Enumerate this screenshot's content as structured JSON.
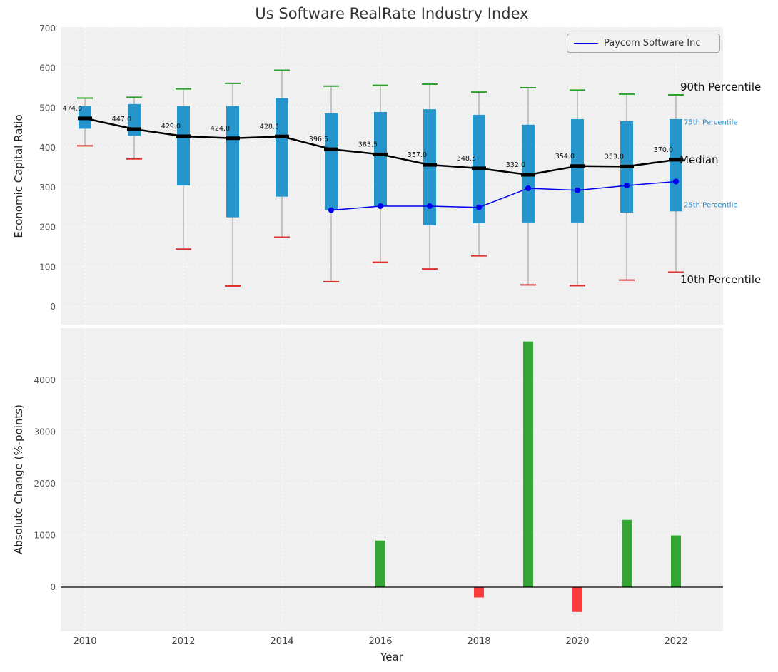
{
  "title": "Us Software RealRate Industry Index",
  "legend": {
    "series_label": "Paycom Software Inc"
  },
  "axis_labels": {
    "top_y": "Economic Capital Ratio",
    "bottom_y": "Absolute Change (%-points)",
    "x": "Year"
  },
  "annotations": {
    "p90": "90th Percentile",
    "p75": "75th Percentile",
    "median": "Median",
    "p25": "25th Percentile",
    "p10": "10th Percentile"
  },
  "colors": {
    "box": "#2595cc",
    "median_line": "#000000",
    "paycom_line": "#0000ee",
    "cap_high": "#2ca02c",
    "cap_low": "#e13030",
    "bar_positive": "#34a534",
    "bar_negative": "#fb3b3b",
    "whisker": "#999999",
    "plot_bg": "#f0f0f0",
    "grid": "#ffffff",
    "annotation_blue": "#1c87c9",
    "tick_label": "#555555"
  },
  "chart_data": [
    {
      "type": "boxplot_with_median_line",
      "title": "Us Software RealRate Industry Index",
      "ylabel": "Economic Capital Ratio",
      "ylim": [
        0,
        700
      ],
      "yticks": [
        0,
        100,
        200,
        300,
        400,
        500,
        600,
        700
      ],
      "xticks": [
        2010,
        2012,
        2014,
        2016,
        2018,
        2020,
        2022
      ],
      "years": [
        2010,
        2011,
        2012,
        2013,
        2014,
        2015,
        2016,
        2017,
        2018,
        2019,
        2020,
        2021,
        2022
      ],
      "p90": [
        525,
        527,
        548,
        562,
        595,
        555,
        557,
        560,
        540,
        551,
        545,
        535,
        533
      ],
      "p75": [
        505,
        510,
        505,
        505,
        525,
        487,
        490,
        497,
        483,
        458,
        472,
        467,
        472
      ],
      "median": [
        474,
        447,
        429,
        424,
        428.5,
        396.5,
        383.5,
        357,
        348.5,
        332,
        354,
        353,
        370
      ],
      "p25": [
        448,
        430,
        305,
        225,
        277,
        243,
        253,
        205,
        210,
        212,
        212,
        237,
        240
      ],
      "p10": [
        405,
        372,
        145,
        52,
        175,
        63,
        112,
        95,
        128,
        55,
        53,
        67,
        87
      ],
      "median_labels": [
        "474.0",
        "447.0",
        "429.0",
        "424.0",
        "428.5",
        "396.5",
        "383.5",
        "357.0",
        "348.5",
        "332.0",
        "354.0",
        "353.0",
        "370.0"
      ],
      "series": [
        {
          "name": "Paycom Software Inc",
          "x": [
            2015,
            2016,
            2017,
            2018,
            2019,
            2020,
            2021,
            2022
          ],
          "y": [
            243,
            253,
            253,
            250,
            298,
            293,
            305,
            315
          ]
        }
      ],
      "legend_position": "upper right",
      "grid": true
    },
    {
      "type": "bar",
      "ylabel": "Absolute Change (%-points)",
      "xlabel": "Year",
      "ylim": [
        -900,
        5000
      ],
      "yticks": [
        0,
        1000,
        2000,
        3000,
        4000
      ],
      "xticks": [
        2010,
        2012,
        2014,
        2016,
        2018,
        2020,
        2022
      ],
      "years": [
        2010,
        2011,
        2012,
        2013,
        2014,
        2015,
        2016,
        2017,
        2018,
        2019,
        2020,
        2021,
        2022
      ],
      "values": [
        0,
        0,
        0,
        0,
        0,
        0,
        900,
        0,
        -200,
        4750,
        -480,
        1300,
        1000
      ],
      "grid": true
    }
  ]
}
